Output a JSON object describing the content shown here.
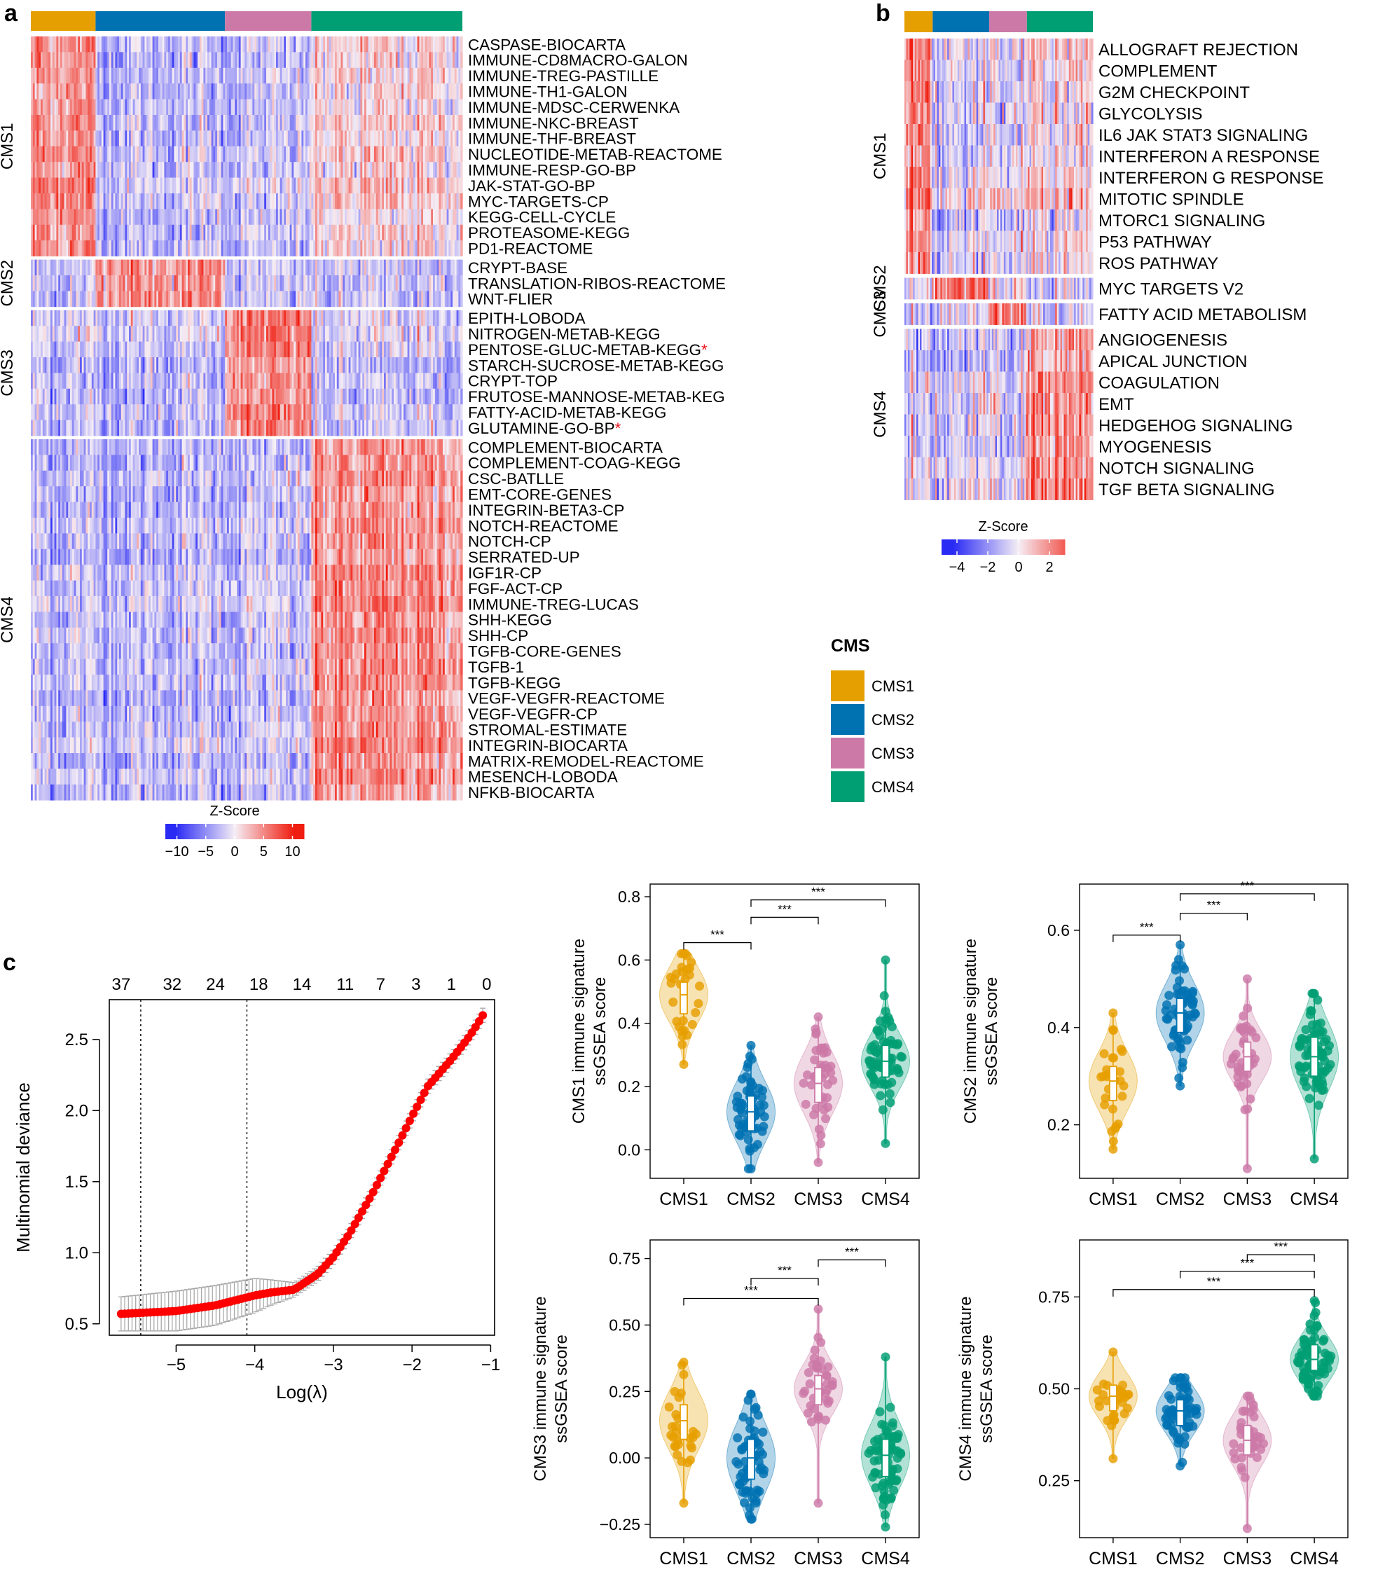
{
  "figure": {
    "panel_a_label": "a",
    "panel_b_label": "b",
    "panel_c_label": "c"
  },
  "colors": {
    "CMS1": "#E69F00",
    "CMS2": "#0072B2",
    "CMS3": "#CC79A7",
    "CMS4": "#009E73",
    "low": "#2A2AF5",
    "mid": "#F5EEF5",
    "high": "#F01E10",
    "lasso_point": "#FF0000",
    "error_bar": "#A8A8A8"
  },
  "legend_cms": {
    "title": "CMS",
    "items": [
      "CMS1",
      "CMS2",
      "CMS3",
      "CMS4"
    ]
  },
  "chart_data": [
    {
      "id": "heatmap_a",
      "type": "heatmap",
      "column_groups": [
        {
          "name": "CMS1",
          "fraction": 0.15
        },
        {
          "name": "CMS2",
          "fraction": 0.3
        },
        {
          "name": "CMS3",
          "fraction": 0.2
        },
        {
          "name": "CMS4",
          "fraction": 0.35
        }
      ],
      "row_groups": [
        {
          "name": "CMS1",
          "rows": [
            "CASPASE-BIOCARTA",
            "IMMUNE-CD8MACRO-GALON",
            "IMMUNE-TREG-PASTILLE",
            "IMMUNE-TH1-GALON",
            "IMMUNE-MDSC-CERWENKA",
            "IMMUNE-NKC-BREAST",
            "IMMUNE-THF-BREAST",
            "NUCLEOTIDE-METAB-REACTOME",
            "IMMUNE-RESP-GO-BP",
            "JAK-STAT-GO-BP",
            "MYC-TARGETS-CP",
            "KEGG-CELL-CYCLE",
            "PROTEASOME-KEGG",
            "PD1-REACTOME"
          ]
        },
        {
          "name": "CMS2",
          "rows": [
            "CRYPT-BASE",
            "TRANSLATION-RIBOS-REACTOME",
            "WNT-FLIER"
          ]
        },
        {
          "name": "CMS3",
          "rows": [
            "EPITH-LOBODA",
            "NITROGEN-METAB-KEGG",
            "PENTOSE-GLUC-METAB-KEGG",
            "STARCH-SUCROSE-METAB-KEGG",
            "CRYPT-TOP",
            "FRUTOSE-MANNOSE-METAB-KEG",
            "FATTY-ACID-METAB-KEGG",
            "GLUTAMINE-GO-BP"
          ]
        },
        {
          "name": "CMS4",
          "rows": [
            "COMPLEMENT-BIOCARTA",
            "COMPLEMENT-COAG-KEGG",
            "CSC-BATLLE",
            "EMT-CORE-GENES",
            "INTEGRIN-BETA3-CP",
            "NOTCH-REACTOME",
            "NOTCH-CP",
            "SERRATED-UP",
            "IGF1R-CP",
            "FGF-ACT-CP",
            "IMMUNE-TREG-LUCAS",
            "SHH-KEGG",
            "SHH-CP",
            "TGFB-CORE-GENES",
            "TGFB-1",
            "TGFB-KEGG",
            "VEGF-VEGFR-REACTOME",
            "VEGF-VEGFR-CP",
            "STROMAL-ESTIMATE",
            "INTEGRIN-BIOCARTA",
            "MATRIX-REMODEL-REACTOME",
            "MESENCH-LOBODA",
            "NFKB-BIOCARTA"
          ]
        }
      ],
      "starred_rows": [
        "PENTOSE-GLUC-METAB-KEGG",
        "GLUTAMINE-GO-BP"
      ],
      "star_symbol": "*",
      "colorbar": {
        "title": "Z-Score",
        "range": [
          -12,
          12
        ],
        "ticks": [
          -10,
          -5,
          0,
          5,
          10
        ],
        "tick_labels": [
          "−10",
          "−5",
          "0",
          "5",
          "10"
        ]
      }
    },
    {
      "id": "heatmap_b",
      "type": "heatmap",
      "column_groups": [
        {
          "name": "CMS1",
          "fraction": 0.15
        },
        {
          "name": "CMS2",
          "fraction": 0.3
        },
        {
          "name": "CMS3",
          "fraction": 0.2
        },
        {
          "name": "CMS4",
          "fraction": 0.35
        }
      ],
      "row_groups": [
        {
          "name": "CMS1",
          "rows": [
            "ALLOGRAFT REJECTION",
            "COMPLEMENT",
            "G2M CHECKPOINT",
            "GLYCOLYSIS",
            "IL6 JAK STAT3 SIGNALING",
            "INTERFERON A RESPONSE",
            "INTERFERON G RESPONSE",
            "MITOTIC SPINDLE",
            "MTORC1 SIGNALING",
            "P53 PATHWAY",
            "ROS PATHWAY"
          ]
        },
        {
          "name": "CMS2",
          "rows": [
            "MYC TARGETS V2"
          ]
        },
        {
          "name": "CMS3",
          "rows": [
            "FATTY ACID METABOLISM"
          ]
        },
        {
          "name": "CMS4",
          "rows": [
            "ANGIOGENESIS",
            "APICAL JUNCTION",
            "COAGULATION",
            "EMT",
            "HEDGEHOG SIGNALING",
            "MYOGENESIS",
            "NOTCH SIGNALING",
            "TGF BETA SIGNALING"
          ]
        }
      ],
      "colorbar": {
        "title": "Z-Score",
        "range": [
          -5,
          3
        ],
        "ticks": [
          -4,
          -2,
          0,
          2
        ],
        "tick_labels": [
          "−4",
          "−2",
          "0",
          "2"
        ]
      }
    },
    {
      "id": "lasso_c",
      "type": "scatter",
      "xlabel": "Log(λ)",
      "ylabel": "Multinomial deviance",
      "xlim": [
        -5.85,
        -0.95
      ],
      "ylim": [
        0.42,
        2.78
      ],
      "xticks": [
        -5,
        -4,
        -3,
        -2,
        -1
      ],
      "yticks": [
        0.5,
        1.0,
        1.5,
        2.0,
        2.5
      ],
      "xtick_labels": [
        "−5",
        "−4",
        "−3",
        "−2",
        "−1"
      ],
      "ytick_labels": [
        "0.5",
        "1.0",
        "1.5",
        "2.0",
        "2.5"
      ],
      "top_axis_values": [
        -5.7,
        -5.05,
        -4.5,
        -3.95,
        -3.4,
        -2.85,
        -2.4,
        -1.95,
        -1.5,
        -1.05
      ],
      "top_axis_labels": [
        "37",
        "32",
        "24",
        "18",
        "14",
        "11",
        "7",
        "3",
        "1",
        "0"
      ],
      "vlines": [
        -5.45,
        -4.1
      ],
      "curve": {
        "x": [
          -5.7,
          -5.0,
          -4.5,
          -4.0,
          -3.8,
          -3.5,
          -3.2,
          -3.0,
          -2.8,
          -2.5,
          -2.2,
          -2.0,
          -1.8,
          -1.5,
          -1.3,
          -1.2,
          -1.1
        ],
        "y": [
          0.57,
          0.59,
          0.63,
          0.7,
          0.72,
          0.74,
          0.85,
          0.97,
          1.13,
          1.42,
          1.74,
          1.96,
          2.17,
          2.36,
          2.5,
          2.58,
          2.67
        ],
        "err": [
          0.12,
          0.14,
          0.14,
          0.12,
          0.09,
          0.05,
          0.05,
          0.05,
          0.05,
          0.05,
          0.05,
          0.05,
          0.05,
          0.05,
          0.05,
          0.05,
          0.05
        ]
      }
    },
    {
      "id": "violin_cms1",
      "type": "violin",
      "ylabel_lines": [
        "CMS1 immune signature",
        "ssGSEA score"
      ],
      "categories": [
        "CMS1",
        "CMS2",
        "CMS3",
        "CMS4"
      ],
      "ylim": [
        -0.09,
        0.84
      ],
      "yticks": [
        0.0,
        0.2,
        0.4,
        0.6,
        0.8
      ],
      "ytick_labels": [
        "0.0",
        "0.2",
        "0.4",
        "0.6",
        "0.8"
      ],
      "series": [
        {
          "name": "CMS1",
          "min": 0.27,
          "q1": 0.43,
          "median": 0.49,
          "q3": 0.53,
          "max": 0.62,
          "n": 28
        },
        {
          "name": "CMS2",
          "min": -0.06,
          "q1": 0.06,
          "median": 0.12,
          "q3": 0.17,
          "max": 0.33,
          "n": 60
        },
        {
          "name": "CMS3",
          "min": -0.04,
          "q1": 0.15,
          "median": 0.21,
          "q3": 0.26,
          "max": 0.42,
          "n": 40
        },
        {
          "name": "CMS4",
          "min": 0.02,
          "q1": 0.23,
          "median": 0.28,
          "q3": 0.33,
          "max": 0.6,
          "n": 70
        }
      ],
      "brackets": [
        {
          "from": "CMS1",
          "to": "CMS2",
          "y": 0.655,
          "label": "***"
        },
        {
          "from": "CMS2",
          "to": "CMS3",
          "y": 0.735,
          "label": "***"
        },
        {
          "from": "CMS2",
          "to": "CMS4",
          "y": 0.79,
          "label": "***"
        }
      ]
    },
    {
      "id": "violin_cms2",
      "type": "violin",
      "ylabel_lines": [
        "CMS2 immune signature",
        "ssGSEA score"
      ],
      "categories": [
        "CMS1",
        "CMS2",
        "CMS3",
        "CMS4"
      ],
      "ylim": [
        0.09,
        0.695
      ],
      "yticks": [
        0.2,
        0.4,
        0.6
      ],
      "ytick_labels": [
        "0.2",
        "0.4",
        "0.6"
      ],
      "series": [
        {
          "name": "CMS1",
          "min": 0.15,
          "q1": 0.25,
          "median": 0.29,
          "q3": 0.32,
          "max": 0.43,
          "n": 28
        },
        {
          "name": "CMS2",
          "min": 0.28,
          "q1": 0.39,
          "median": 0.43,
          "q3": 0.46,
          "max": 0.57,
          "n": 60
        },
        {
          "name": "CMS3",
          "min": 0.11,
          "q1": 0.31,
          "median": 0.34,
          "q3": 0.37,
          "max": 0.5,
          "n": 40
        },
        {
          "name": "CMS4",
          "min": 0.13,
          "q1": 0.3,
          "median": 0.34,
          "q3": 0.38,
          "max": 0.47,
          "n": 70
        }
      ],
      "brackets": [
        {
          "from": "CMS1",
          "to": "CMS2",
          "y": 0.59,
          "label": "***"
        },
        {
          "from": "CMS2",
          "to": "CMS3",
          "y": 0.635,
          "label": "***"
        },
        {
          "from": "CMS2",
          "to": "CMS4",
          "y": 0.675,
          "label": "***"
        }
      ]
    },
    {
      "id": "violin_cms3",
      "type": "violin",
      "ylabel_lines": [
        "CMS3 immune signature",
        "ssGSEA score"
      ],
      "categories": [
        "CMS1",
        "CMS2",
        "CMS3",
        "CMS4"
      ],
      "ylim": [
        -0.3,
        0.82
      ],
      "yticks": [
        -0.25,
        0.0,
        0.25,
        0.5,
        0.75
      ],
      "ytick_labels": [
        "−0.25",
        "0.00",
        "0.25",
        "0.50",
        "0.75"
      ],
      "series": [
        {
          "name": "CMS1",
          "min": -0.17,
          "q1": 0.07,
          "median": 0.14,
          "q3": 0.2,
          "max": 0.36,
          "n": 28
        },
        {
          "name": "CMS2",
          "min": -0.23,
          "q1": -0.08,
          "median": 0.0,
          "q3": 0.07,
          "max": 0.24,
          "n": 60
        },
        {
          "name": "CMS3",
          "min": -0.17,
          "q1": 0.2,
          "median": 0.26,
          "q3": 0.31,
          "max": 0.56,
          "n": 40
        },
        {
          "name": "CMS4",
          "min": -0.26,
          "q1": -0.07,
          "median": 0.01,
          "q3": 0.07,
          "max": 0.38,
          "n": 70
        }
      ],
      "brackets": [
        {
          "from": "CMS1",
          "to": "CMS3",
          "y": 0.6,
          "label": "***"
        },
        {
          "from": "CMS2",
          "to": "CMS3",
          "y": 0.675,
          "label": "***"
        },
        {
          "from": "CMS3",
          "to": "CMS4",
          "y": 0.745,
          "label": "***"
        }
      ]
    },
    {
      "id": "violin_cms4",
      "type": "violin",
      "ylabel_lines": [
        "CMS4 immune signature",
        "ssGSEA score"
      ],
      "categories": [
        "CMS1",
        "CMS2",
        "CMS3",
        "CMS4"
      ],
      "ylim": [
        0.095,
        0.905
      ],
      "yticks": [
        0.25,
        0.5,
        0.75
      ],
      "ytick_labels": [
        "0.25",
        "0.50",
        "0.75"
      ],
      "series": [
        {
          "name": "CMS1",
          "min": 0.31,
          "q1": 0.44,
          "median": 0.48,
          "q3": 0.51,
          "max": 0.6,
          "n": 28
        },
        {
          "name": "CMS2",
          "min": 0.29,
          "q1": 0.4,
          "median": 0.44,
          "q3": 0.47,
          "max": 0.53,
          "n": 60
        },
        {
          "name": "CMS3",
          "min": 0.12,
          "q1": 0.32,
          "median": 0.36,
          "q3": 0.4,
          "max": 0.48,
          "n": 40
        },
        {
          "name": "CMS4",
          "min": 0.48,
          "q1": 0.55,
          "median": 0.58,
          "q3": 0.62,
          "max": 0.74,
          "n": 70
        }
      ],
      "brackets": [
        {
          "from": "CMS1",
          "to": "CMS4",
          "y": 0.77,
          "label": "***"
        },
        {
          "from": "CMS2",
          "to": "CMS4",
          "y": 0.82,
          "label": "***"
        },
        {
          "from": "CMS3",
          "to": "CMS4",
          "y": 0.865,
          "label": "***"
        }
      ]
    }
  ]
}
